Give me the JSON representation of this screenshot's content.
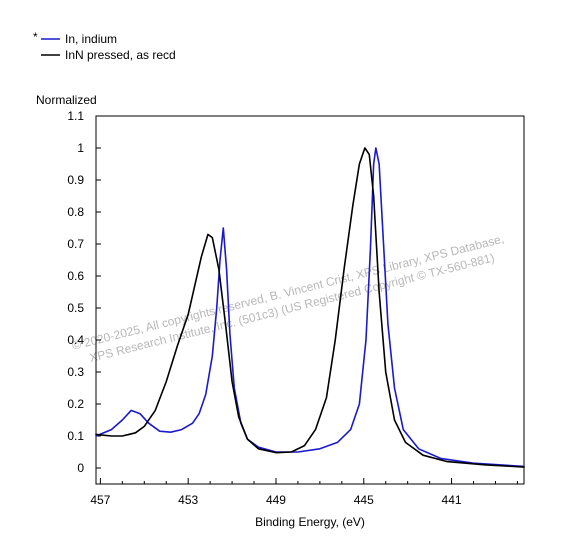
{
  "chart_data": {
    "type": "line",
    "title": "",
    "xlabel": "Binding Energy, (eV)",
    "ylabel": "Normalized",
    "xlim": [
      457.2,
      437.7
    ],
    "ylim": [
      -0.05,
      1.1
    ],
    "x_reversed": true,
    "x_ticks": [
      "457",
      "453",
      "449",
      "445",
      "441"
    ],
    "y_ticks": [
      "0",
      "0.1",
      "0.2",
      "0.3",
      "0.4",
      "0.5",
      "0.6",
      "0.7",
      "0.8",
      "0.9",
      "1",
      "1.1"
    ],
    "grid": false,
    "legend_position": "top-left",
    "legend_marker": "*",
    "series": [
      {
        "name": "In, indium",
        "color": "#1a1acc",
        "points": [
          [
            457.2,
            0.1
          ],
          [
            456.5,
            0.12
          ],
          [
            456.0,
            0.15
          ],
          [
            455.6,
            0.18
          ],
          [
            455.2,
            0.17
          ],
          [
            454.8,
            0.14
          ],
          [
            454.3,
            0.115
          ],
          [
            453.8,
            0.112
          ],
          [
            453.3,
            0.12
          ],
          [
            452.8,
            0.14
          ],
          [
            452.5,
            0.17
          ],
          [
            452.2,
            0.23
          ],
          [
            451.9,
            0.35
          ],
          [
            451.7,
            0.5
          ],
          [
            451.55,
            0.65
          ],
          [
            451.4,
            0.75
          ],
          [
            451.25,
            0.62
          ],
          [
            451.1,
            0.42
          ],
          [
            450.9,
            0.25
          ],
          [
            450.6,
            0.14
          ],
          [
            450.3,
            0.09
          ],
          [
            449.8,
            0.065
          ],
          [
            449.0,
            0.05
          ],
          [
            448.0,
            0.05
          ],
          [
            447.0,
            0.06
          ],
          [
            446.2,
            0.08
          ],
          [
            445.6,
            0.12
          ],
          [
            445.2,
            0.2
          ],
          [
            444.9,
            0.4
          ],
          [
            444.7,
            0.68
          ],
          [
            444.55,
            0.95
          ],
          [
            444.45,
            1.0
          ],
          [
            444.3,
            0.95
          ],
          [
            444.1,
            0.7
          ],
          [
            443.9,
            0.45
          ],
          [
            443.6,
            0.25
          ],
          [
            443.2,
            0.12
          ],
          [
            442.5,
            0.06
          ],
          [
            441.5,
            0.03
          ],
          [
            440.0,
            0.015
          ],
          [
            437.7,
            0.005
          ]
        ]
      },
      {
        "name": "InN pressed, as recd",
        "color": "#000000",
        "points": [
          [
            457.2,
            0.105
          ],
          [
            456.5,
            0.1
          ],
          [
            456.0,
            0.1
          ],
          [
            455.4,
            0.11
          ],
          [
            455.0,
            0.13
          ],
          [
            454.5,
            0.18
          ],
          [
            454.0,
            0.27
          ],
          [
            453.5,
            0.38
          ],
          [
            453.0,
            0.48
          ],
          [
            452.7,
            0.57
          ],
          [
            452.4,
            0.66
          ],
          [
            452.1,
            0.73
          ],
          [
            451.9,
            0.72
          ],
          [
            451.6,
            0.62
          ],
          [
            451.3,
            0.45
          ],
          [
            451.0,
            0.27
          ],
          [
            450.7,
            0.16
          ],
          [
            450.3,
            0.09
          ],
          [
            449.8,
            0.06
          ],
          [
            449.0,
            0.048
          ],
          [
            448.3,
            0.05
          ],
          [
            447.7,
            0.07
          ],
          [
            447.2,
            0.12
          ],
          [
            446.7,
            0.22
          ],
          [
            446.3,
            0.4
          ],
          [
            445.9,
            0.62
          ],
          [
            445.5,
            0.82
          ],
          [
            445.2,
            0.95
          ],
          [
            444.95,
            1.0
          ],
          [
            444.75,
            0.98
          ],
          [
            444.55,
            0.85
          ],
          [
            444.3,
            0.55
          ],
          [
            444.0,
            0.3
          ],
          [
            443.6,
            0.15
          ],
          [
            443.1,
            0.08
          ],
          [
            442.3,
            0.04
          ],
          [
            441.2,
            0.02
          ],
          [
            439.5,
            0.01
          ],
          [
            437.7,
            0.003
          ]
        ]
      }
    ],
    "watermark": [
      "©  2020-2025,  All copyrights reserved,   B. Vincent Crist,   XPS Library, XPS Database,",
      "XPS Research Institute, Inc. (501c3)   (US Registered Copyright © TX-560-881)"
    ]
  }
}
